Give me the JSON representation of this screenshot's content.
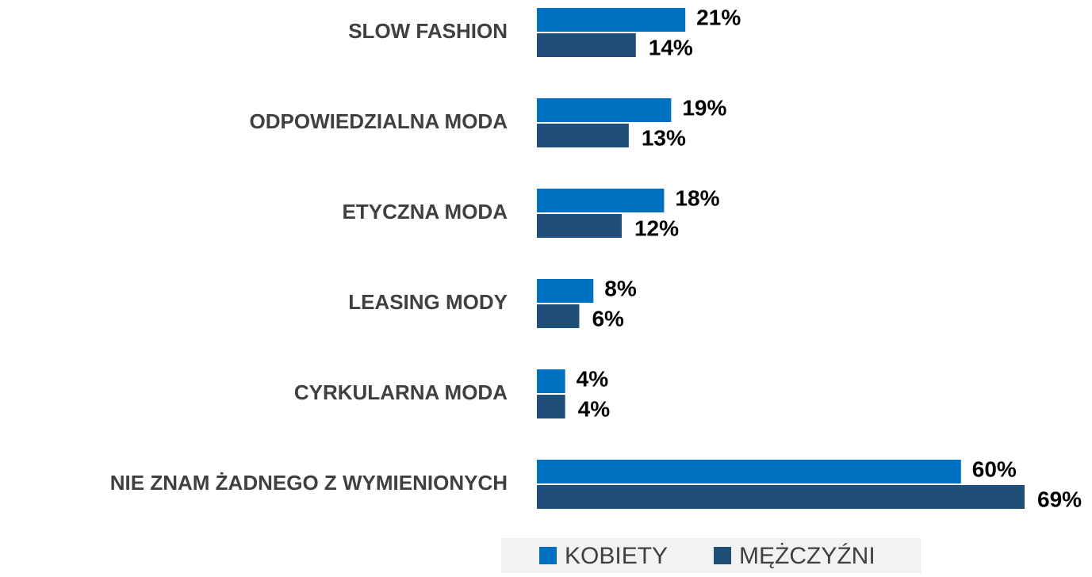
{
  "chart_data": {
    "type": "bar",
    "orientation": "horizontal",
    "categories": [
      "SLOW FASHION",
      "ODPOWIEDZIALNA MODA",
      "ETYCZNA MODA",
      "LEASING MODY",
      "CYRKULARNA MODA",
      "NIE ZNAM ŻADNEGO Z WYMIENIONYCH"
    ],
    "series": [
      {
        "name": "KOBIETY",
        "color": "#0070c0",
        "values": [
          21,
          19,
          18,
          8,
          4,
          60
        ],
        "value_labels": [
          "21%",
          "19%",
          "18%",
          "8%",
          "4%",
          "60%"
        ]
      },
      {
        "name": "MĘŻCZYŹNI",
        "color": "#1f4e79",
        "values": [
          14,
          13,
          12,
          6,
          4,
          69
        ],
        "value_labels": [
          "14%",
          "13%",
          "12%",
          "6%",
          "4%",
          "69%"
        ]
      }
    ],
    "legend": "bottom"
  }
}
